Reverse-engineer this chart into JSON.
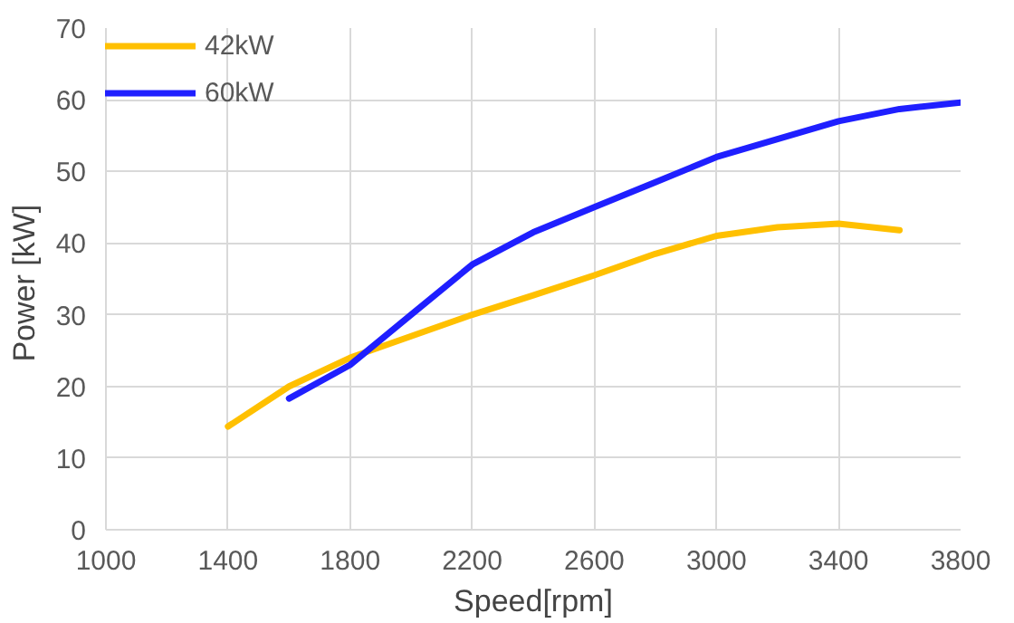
{
  "chart_data": {
    "type": "line",
    "xlabel": "Speed[rpm]",
    "ylabel": "Power  [kW]",
    "xlim": [
      1000,
      3800
    ],
    "xticks": [
      1000,
      1400,
      1800,
      2200,
      2600,
      3000,
      3400,
      3800
    ],
    "ylim": [
      0,
      70
    ],
    "yticks": [
      0,
      10,
      20,
      30,
      40,
      50,
      60,
      70
    ],
    "grid": true,
    "legend": "top left",
    "line_style": "solid",
    "marker": "none",
    "series": [
      {
        "name": "42kW",
        "color": "#ffc000",
        "x": [
          1400,
          1600,
          1800,
          2000,
          2200,
          2400,
          2600,
          2800,
          3000,
          3200,
          3400,
          3600
        ],
        "values": [
          14.4,
          20,
          24,
          27,
          30,
          32.7,
          35.5,
          38.5,
          41,
          42.2,
          42.7,
          41.8
        ]
      },
      {
        "name": "60kW",
        "color": "#1f1fff",
        "x": [
          1600,
          1800,
          2000,
          2200,
          2400,
          2600,
          2800,
          3000,
          3200,
          3400,
          3600,
          3800
        ],
        "values": [
          18.3,
          23,
          30,
          37,
          41.5,
          45,
          48.5,
          52,
          54.5,
          57,
          58.7,
          59.6
        ]
      }
    ]
  }
}
